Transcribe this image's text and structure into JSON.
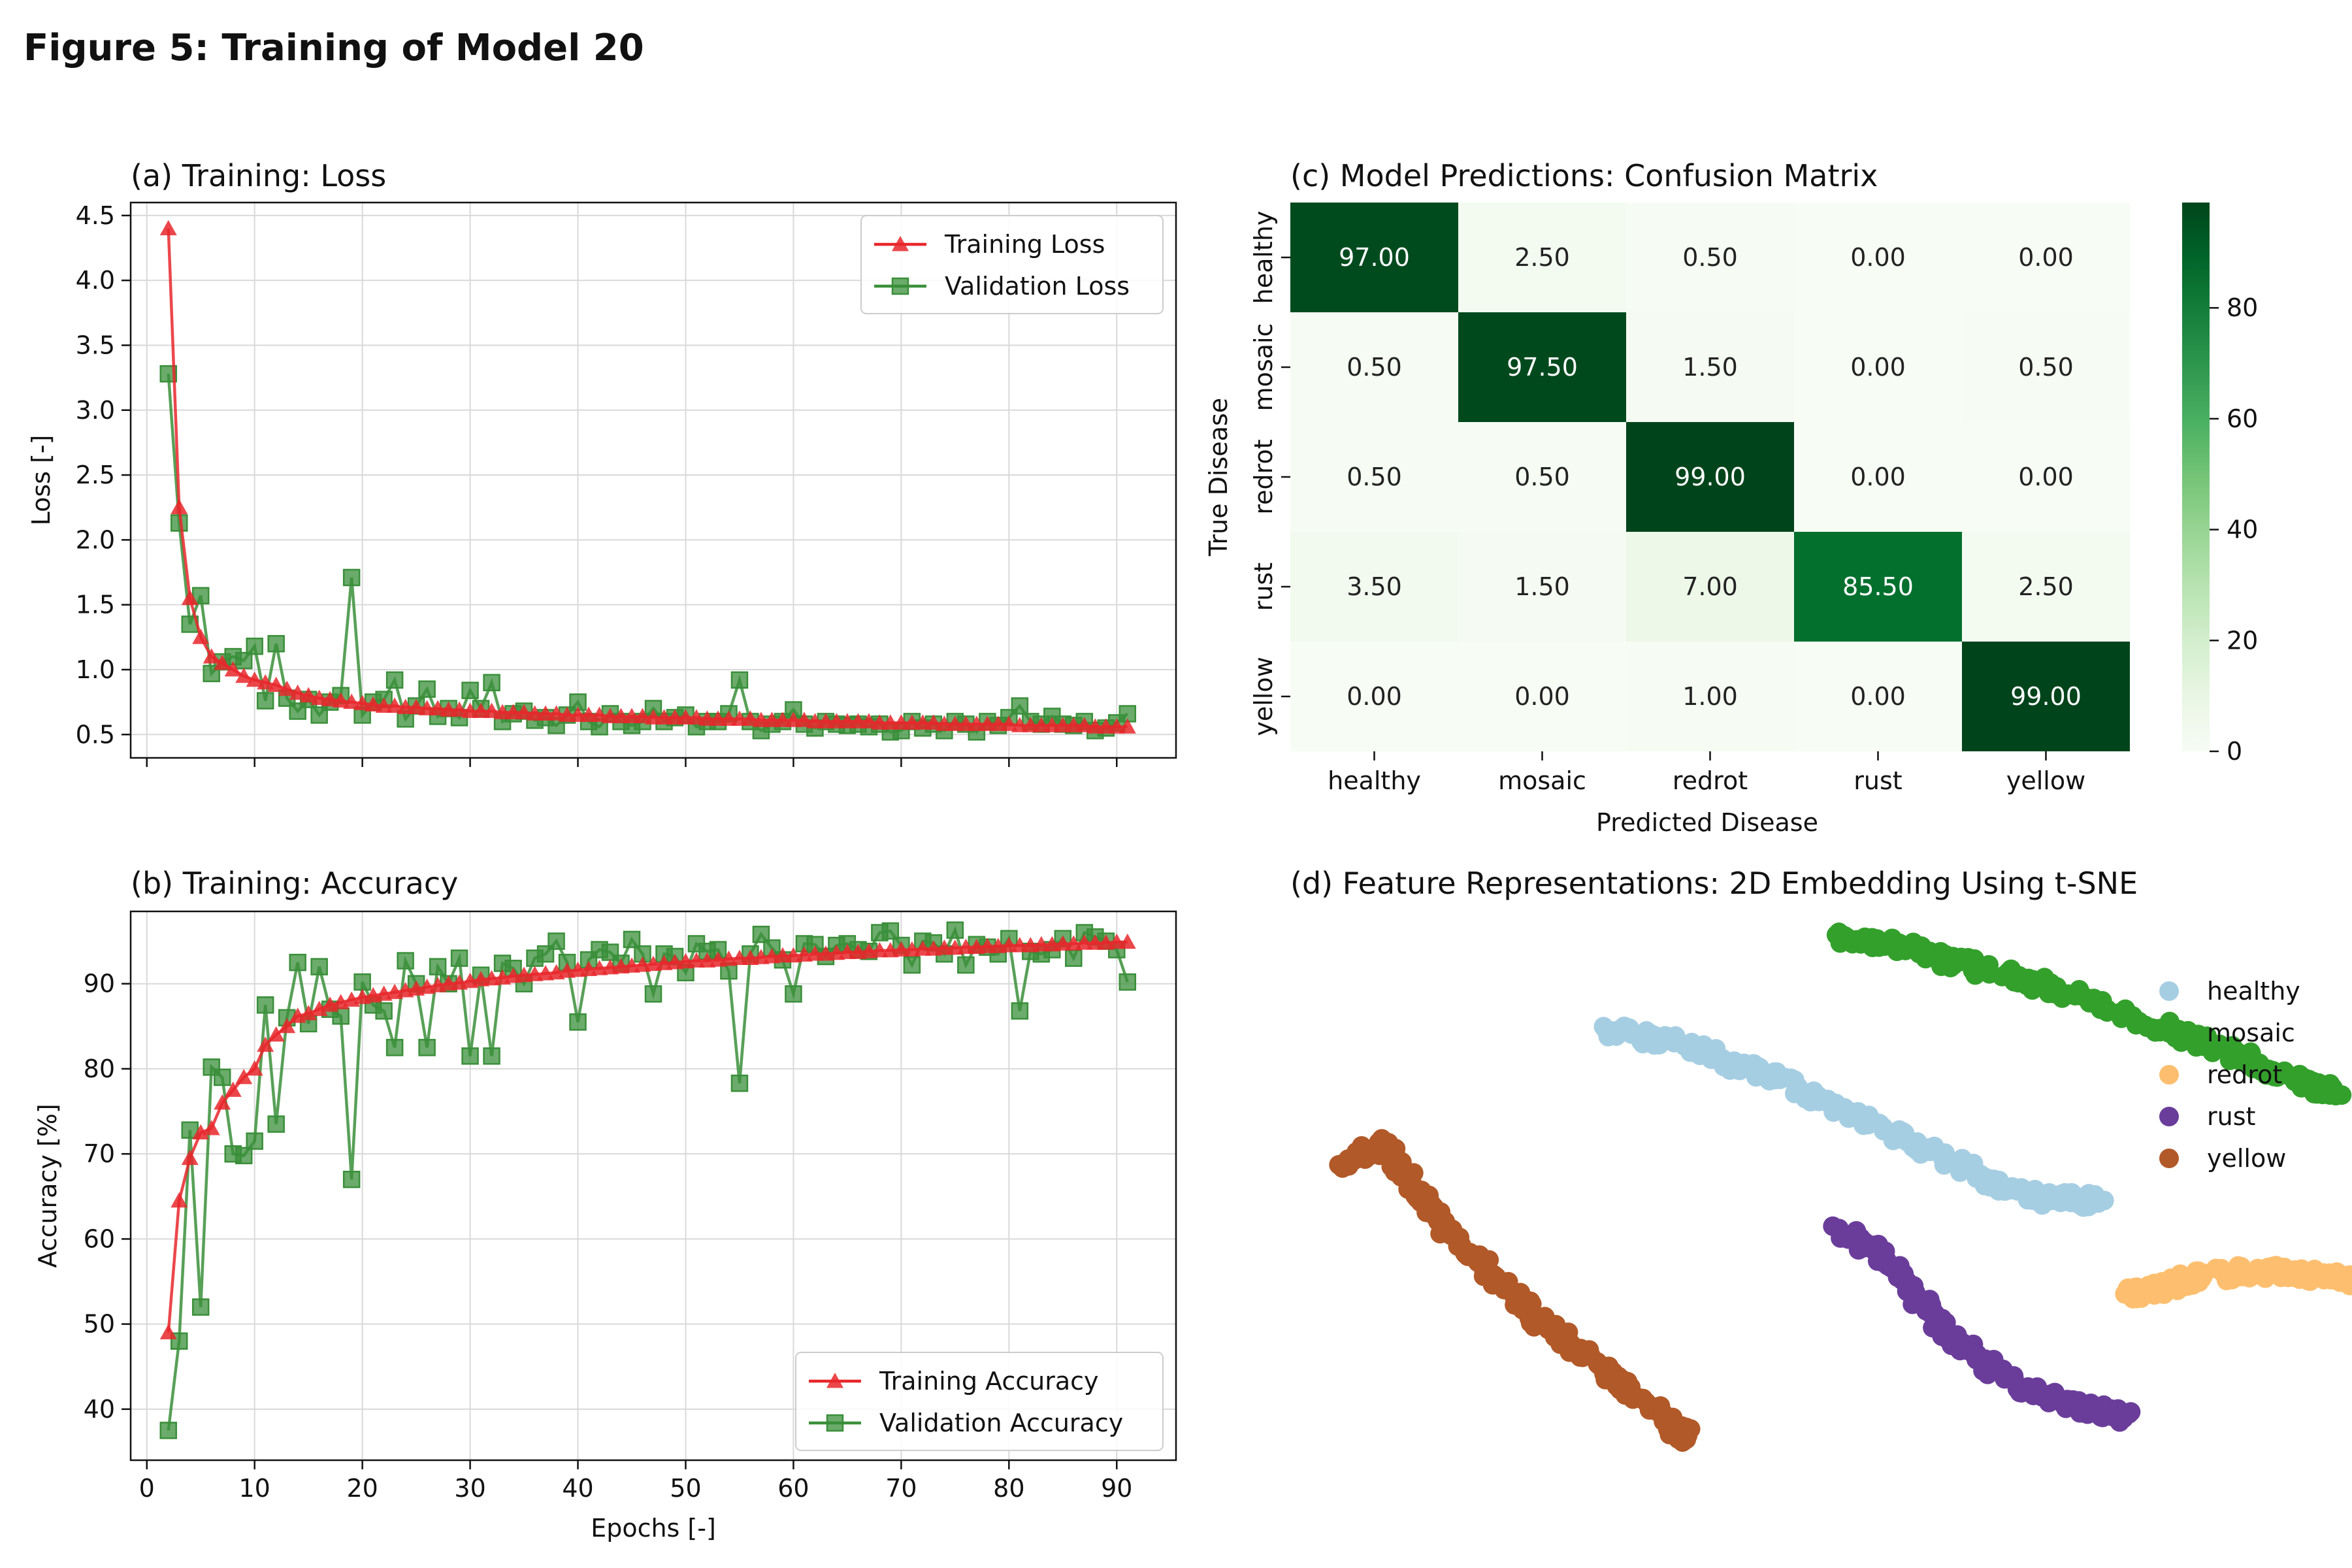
{
  "figure_title": "Figure 5: Training of Model 20",
  "colors": {
    "train": "#e8272b",
    "val": "#3a8f3a",
    "healthy": "#a6cee3",
    "mosaic": "#33a02c",
    "redrot": "#fdbf6f",
    "rust": "#6a3d9a",
    "yellow": "#b15928"
  },
  "chart_data": [
    {
      "type": "line",
      "title": "(a) Training: Loss",
      "xlabel": "",
      "ylabel": "Loss [-]",
      "xlim": [
        -1.5,
        95.5
      ],
      "ylim": [
        0.32,
        4.6
      ],
      "xticks": [
        0,
        10,
        20,
        30,
        40,
        50,
        60,
        70,
        80,
        90
      ],
      "yticks": [
        0.5,
        1.0,
        1.5,
        2.0,
        2.5,
        3.0,
        3.5,
        4.0,
        4.5
      ],
      "ytick_labels": [
        "0.5",
        "1.0",
        "1.5",
        "2.0",
        "2.5",
        "3.0",
        "3.5",
        "4.0",
        "4.5"
      ],
      "show_xtick_labels": false,
      "grid": true,
      "legend": "upper right",
      "x_start": 2,
      "series": [
        {
          "name": "Training Loss",
          "marker": "triangle",
          "color_key": "train",
          "values": [
            4.4,
            2.25,
            1.55,
            1.25,
            1.1,
            1.05,
            1.0,
            0.95,
            0.92,
            0.9,
            0.88,
            0.85,
            0.82,
            0.8,
            0.78,
            0.77,
            0.76,
            0.75,
            0.74,
            0.73,
            0.72,
            0.72,
            0.71,
            0.71,
            0.7,
            0.7,
            0.69,
            0.69,
            0.68,
            0.68,
            0.68,
            0.67,
            0.67,
            0.67,
            0.66,
            0.66,
            0.66,
            0.65,
            0.65,
            0.65,
            0.65,
            0.64,
            0.64,
            0.64,
            0.64,
            0.63,
            0.63,
            0.63,
            0.63,
            0.63,
            0.62,
            0.62,
            0.62,
            0.62,
            0.62,
            0.61,
            0.61,
            0.61,
            0.61,
            0.61,
            0.6,
            0.6,
            0.6,
            0.6,
            0.6,
            0.6,
            0.59,
            0.59,
            0.59,
            0.59,
            0.59,
            0.59,
            0.58,
            0.58,
            0.58,
            0.58,
            0.58,
            0.58,
            0.58,
            0.57,
            0.57,
            0.57,
            0.57,
            0.57,
            0.57,
            0.57,
            0.56,
            0.56,
            0.56,
            0.56
          ]
        },
        {
          "name": "Validation Loss",
          "marker": "square",
          "color_key": "val",
          "values": [
            3.28,
            2.13,
            1.35,
            1.57,
            0.97,
            1.06,
            1.1,
            1.07,
            1.18,
            0.76,
            1.2,
            0.78,
            0.68,
            0.77,
            0.65,
            0.75,
            0.8,
            1.71,
            0.65,
            0.75,
            0.77,
            0.92,
            0.62,
            0.72,
            0.85,
            0.64,
            0.7,
            0.63,
            0.84,
            0.7,
            0.9,
            0.6,
            0.66,
            0.68,
            0.61,
            0.63,
            0.57,
            0.65,
            0.75,
            0.6,
            0.56,
            0.66,
            0.6,
            0.57,
            0.6,
            0.7,
            0.6,
            0.63,
            0.65,
            0.56,
            0.6,
            0.6,
            0.66,
            0.92,
            0.6,
            0.53,
            0.58,
            0.6,
            0.69,
            0.58,
            0.55,
            0.6,
            0.58,
            0.57,
            0.58,
            0.56,
            0.58,
            0.52,
            0.53,
            0.6,
            0.55,
            0.58,
            0.53,
            0.6,
            0.58,
            0.52,
            0.6,
            0.57,
            0.63,
            0.72,
            0.6,
            0.58,
            0.64,
            0.58,
            0.57,
            0.6,
            0.53,
            0.55,
            0.59,
            0.66
          ]
        }
      ]
    },
    {
      "type": "line",
      "title": "(b) Training: Accuracy",
      "xlabel": "Epochs [-]",
      "ylabel": "Accuracy [%]",
      "xlim": [
        -1.5,
        95.5
      ],
      "ylim": [
        34,
        98.5
      ],
      "xticks": [
        0,
        10,
        20,
        30,
        40,
        50,
        60,
        70,
        80,
        90
      ],
      "xtick_labels": [
        "0",
        "10",
        "20",
        "30",
        "40",
        "50",
        "60",
        "70",
        "80",
        "90"
      ],
      "yticks": [
        40,
        50,
        60,
        70,
        80,
        90
      ],
      "ytick_labels": [
        "40",
        "50",
        "60",
        "70",
        "80",
        "90"
      ],
      "show_xtick_labels": true,
      "grid": true,
      "legend": "lower right",
      "x_start": 2,
      "series": [
        {
          "name": "Training Accuracy",
          "marker": "triangle",
          "color_key": "train",
          "values": [
            49,
            64.5,
            69.5,
            72.5,
            73,
            76,
            77.5,
            79,
            80,
            82.8,
            84,
            85,
            86.2,
            86.5,
            87,
            87.5,
            87.8,
            88.1,
            88.4,
            88.6,
            88.8,
            89,
            89.2,
            89.4,
            89.6,
            89.8,
            90,
            90.1,
            90.3,
            90.5,
            90.6,
            90.7,
            90.9,
            91,
            91.1,
            91.2,
            91.3,
            91.5,
            91.6,
            91.7,
            91.8,
            91.9,
            92,
            92.1,
            92.2,
            92.3,
            92.4,
            92.5,
            92.6,
            92.7,
            92.7,
            92.8,
            92.9,
            93,
            93,
            93.1,
            93.2,
            93.3,
            93.3,
            93.4,
            93.5,
            93.5,
            93.6,
            93.7,
            93.7,
            93.8,
            93.9,
            93.9,
            94,
            94,
            94.1,
            94.1,
            94.2,
            94.2,
            94.3,
            94.3,
            94.4,
            94.4,
            94.5,
            94.5,
            94.5,
            94.6,
            94.6,
            94.7,
            94.7,
            94.8,
            94.8,
            94.8,
            94.9,
            94.9
          ]
        },
        {
          "name": "Validation Accuracy",
          "marker": "square",
          "color_key": "val",
          "values": [
            37.5,
            48,
            72.8,
            52,
            80.2,
            79,
            70,
            69.8,
            71.5,
            87.5,
            73.5,
            86,
            92.5,
            85.3,
            92,
            87,
            86.2,
            67,
            90.2,
            87.5,
            86.8,
            82.5,
            92.7,
            90,
            82.5,
            92,
            90,
            93,
            81.5,
            91,
            81.5,
            92.4,
            91.8,
            90,
            93,
            93.5,
            95,
            92.5,
            85.5,
            92.8,
            94,
            93.7,
            92.4,
            95.2,
            93.5,
            88.8,
            93.5,
            93.2,
            91.3,
            94.7,
            93.8,
            94,
            91.5,
            78.3,
            93.5,
            95.8,
            94.2,
            92.8,
            88.8,
            94.7,
            94.6,
            93.2,
            94.5,
            94.7,
            94,
            93.8,
            96,
            96.2,
            94.5,
            92.2,
            95,
            94.8,
            93.5,
            96.3,
            92.2,
            94.6,
            94.3,
            93.5,
            95.3,
            86.8,
            93.8,
            93.5,
            94,
            95.3,
            93,
            96,
            95.5,
            95,
            94,
            90.2
          ]
        }
      ]
    },
    {
      "type": "heatmap",
      "title": "(c) Model Predictions: Confusion Matrix",
      "xlabel": "Predicted Disease",
      "ylabel": "True Disease",
      "x_categories": [
        "healthy",
        "mosaic",
        "redrot",
        "rust",
        "yellow"
      ],
      "y_categories": [
        "healthy",
        "mosaic",
        "redrot",
        "rust",
        "yellow"
      ],
      "values": [
        [
          97.0,
          2.5,
          0.5,
          0.0,
          0.0
        ],
        [
          0.5,
          97.5,
          1.5,
          0.0,
          0.5
        ],
        [
          0.5,
          0.5,
          99.0,
          0.0,
          0.0
        ],
        [
          3.5,
          1.5,
          7.0,
          85.5,
          2.5
        ],
        [
          0.0,
          0.0,
          1.0,
          0.0,
          99.0
        ]
      ],
      "value_labels": [
        [
          "97.00",
          "2.50",
          "0.50",
          "0.00",
          "0.00"
        ],
        [
          "0.50",
          "97.50",
          "1.50",
          "0.00",
          "0.50"
        ],
        [
          "0.50",
          "0.50",
          "99.00",
          "0.00",
          "0.00"
        ],
        [
          "3.50",
          "1.50",
          "7.00",
          "85.50",
          "2.50"
        ],
        [
          "0.00",
          "0.00",
          "1.00",
          "0.00",
          "99.00"
        ]
      ],
      "colormap": "Greens",
      "colorbar_range": [
        0,
        99
      ],
      "colorbar_ticks": [
        0,
        20,
        40,
        60,
        80
      ],
      "colorbar_tick_labels": [
        "0",
        "20",
        "40",
        "60",
        "80"
      ]
    },
    {
      "type": "scatter",
      "title": "(d) Feature Representations: 2D Embedding Using t-SNE",
      "xlabel": "",
      "ylabel": "",
      "axes_visible": false,
      "legend": "upper right",
      "xlim": [
        0,
        100
      ],
      "ylim": [
        0,
        100
      ],
      "series": [
        {
          "name": "healthy",
          "color_key": "healthy",
          "path": [
            [
              27,
              79
            ],
            [
              33,
              77
            ],
            [
              40,
              72
            ],
            [
              47,
              66
            ],
            [
              55,
              58
            ],
            [
              62,
              51
            ],
            [
              67,
              48
            ],
            [
              72,
              48
            ]
          ]
        },
        {
          "name": "mosaic",
          "color_key": "mosaic",
          "path": [
            [
              48,
              96
            ],
            [
              54,
              94
            ],
            [
              61,
              90
            ],
            [
              68,
              86
            ],
            [
              76,
              80
            ],
            [
              83,
              75
            ],
            [
              89,
              70
            ],
            [
              93,
              67
            ]
          ]
        },
        {
          "name": "redrot",
          "color_key": "redrot",
          "path": [
            [
              74,
              31
            ],
            [
              77,
              32
            ],
            [
              80,
              34
            ],
            [
              86,
              35
            ],
            [
              92,
              34
            ],
            [
              98,
              32
            ],
            [
              104,
              26
            ],
            [
              109,
              18
            ],
            [
              112,
              12
            ],
            [
              113,
              10
            ]
          ]
        },
        {
          "name": "rust",
          "color_key": "rust",
          "path": [
            [
              48,
              42
            ],
            [
              52,
              38
            ],
            [
              55,
              30
            ],
            [
              59,
              21
            ],
            [
              64,
              14
            ],
            [
              70,
              10
            ],
            [
              74,
              8
            ]
          ]
        },
        {
          "name": "yellow",
          "color_key": "yellow",
          "path": [
            [
              3,
              55
            ],
            [
              7,
              58
            ],
            [
              10,
              49
            ],
            [
              13,
              42
            ],
            [
              17,
              34
            ],
            [
              22,
              24
            ],
            [
              28,
              15
            ],
            [
              33,
              7
            ],
            [
              34,
              5
            ]
          ]
        }
      ]
    }
  ]
}
